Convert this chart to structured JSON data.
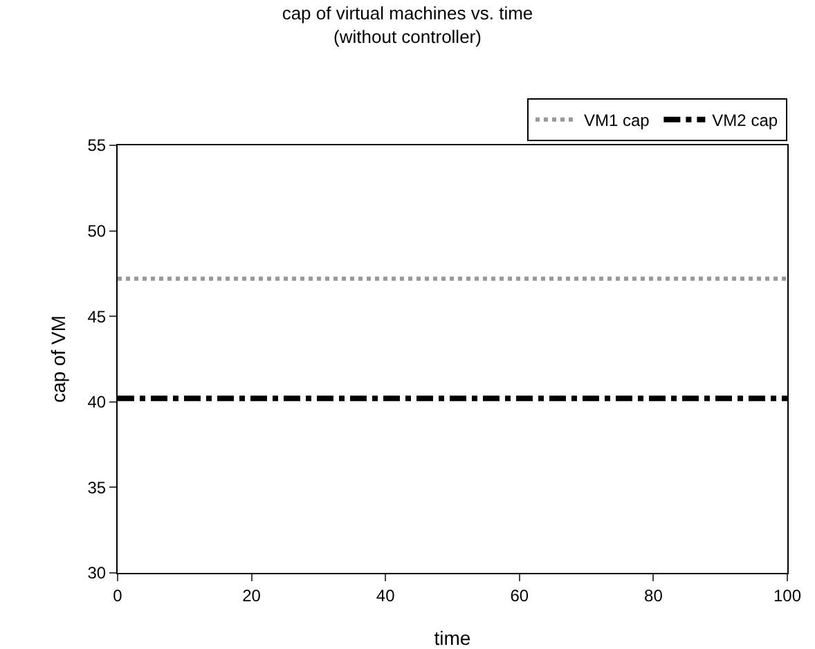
{
  "chart_data": {
    "type": "line",
    "title": "cap of virtual machines vs. time\n(without controller)",
    "xlabel": "time",
    "ylabel": "cap of VM",
    "x": [
      0,
      100
    ],
    "series": [
      {
        "name": "VM1 cap",
        "color": "#999999",
        "values": [
          47.2,
          47.2
        ],
        "line_style": "dotted"
      },
      {
        "name": "VM2 cap",
        "color": "#000000",
        "values": [
          40.2,
          40.2
        ],
        "line_style": "dashed"
      }
    ],
    "xlim": [
      0,
      100
    ],
    "xticks": [
      0,
      20,
      40,
      60,
      80,
      100
    ],
    "ylim": [
      30,
      55
    ],
    "yticks": [
      30,
      35,
      40,
      45,
      50,
      55
    ],
    "grid": false,
    "legend": "top right",
    "marker": "none"
  }
}
